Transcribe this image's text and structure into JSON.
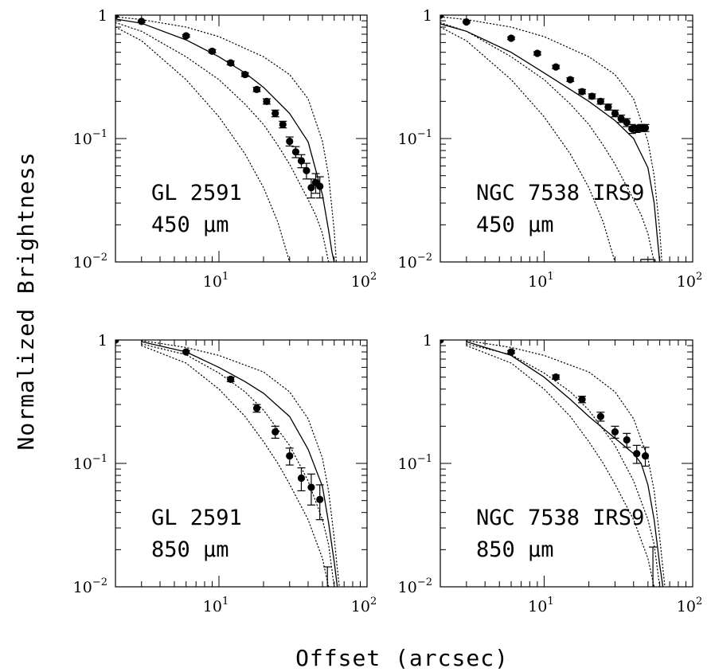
{
  "figure": {
    "xlabel": "Offset (arcsec)",
    "ylabel": "Normalized Brightness"
  },
  "chart_data": [
    {
      "type": "scatter",
      "source": "GL 2591",
      "wavelength": "450 μm",
      "xscale": "log",
      "yscale": "log",
      "xlim": [
        2,
        100
      ],
      "ylim": [
        0.01,
        1
      ],
      "x_ticks": [
        {
          "base": "10",
          "exp": "1"
        },
        {
          "base": "10",
          "exp": "2"
        }
      ],
      "y_ticks": [
        {
          "base": "1",
          "exp": ""
        },
        {
          "base": "10",
          "exp": "−1"
        },
        {
          "base": "10",
          "exp": "−2"
        }
      ],
      "series": [
        {
          "style": "points",
          "x": [
            2,
            3,
            6,
            9,
            12,
            15,
            18,
            21,
            24,
            27,
            30,
            33,
            36,
            39,
            42,
            45,
            48
          ],
          "y": [
            1.0,
            0.89,
            0.68,
            0.51,
            0.41,
            0.33,
            0.25,
            0.2,
            0.16,
            0.13,
            0.095,
            0.078,
            0.066,
            0.055,
            0.04,
            0.044,
            0.041
          ],
          "yerr": [
            0,
            0.015,
            0.015,
            0.015,
            0.015,
            0.012,
            0.01,
            0.01,
            0.01,
            0.008,
            0.008,
            0.008,
            0.008,
            0.008,
            0.007,
            0.008,
            0.008
          ]
        },
        {
          "style": "solid",
          "x": [
            2,
            3,
            6,
            10,
            15,
            20,
            30,
            40,
            50,
            55,
            58,
            60
          ],
          "y": [
            0.93,
            0.86,
            0.63,
            0.46,
            0.34,
            0.26,
            0.16,
            0.094,
            0.035,
            0.018,
            0.012,
            0.01
          ]
        },
        {
          "style": "dotted",
          "x": [
            2,
            3,
            6,
            10,
            20,
            30,
            40,
            50,
            55,
            60,
            62
          ],
          "y": [
            0.97,
            0.92,
            0.8,
            0.67,
            0.46,
            0.33,
            0.21,
            0.095,
            0.05,
            0.018,
            0.01
          ]
        },
        {
          "style": "dotted",
          "x": [
            2,
            3,
            6,
            10,
            15,
            20,
            25,
            30,
            40,
            45,
            50,
            55
          ],
          "y": [
            0.87,
            0.74,
            0.46,
            0.3,
            0.19,
            0.13,
            0.088,
            0.062,
            0.032,
            0.024,
            0.017,
            0.01
          ]
        },
        {
          "style": "dotted",
          "x": [
            2,
            3,
            6,
            10,
            15,
            20,
            25,
            30
          ],
          "y": [
            0.8,
            0.62,
            0.3,
            0.15,
            0.075,
            0.04,
            0.021,
            0.01
          ]
        }
      ]
    },
    {
      "type": "scatter",
      "source": "NGC 7538 IRS9",
      "wavelength": "450 μm",
      "xscale": "log",
      "yscale": "log",
      "xlim": [
        2,
        100
      ],
      "ylim": [
        0.01,
        1
      ],
      "x_ticks": [
        {
          "base": "10",
          "exp": "1"
        },
        {
          "base": "10",
          "exp": "2"
        }
      ],
      "y_ticks": [
        {
          "base": "1",
          "exp": ""
        },
        {
          "base": "10",
          "exp": "−1"
        },
        {
          "base": "10",
          "exp": "−2"
        }
      ],
      "series": [
        {
          "style": "points",
          "x": [
            2,
            3,
            6,
            9,
            12,
            15,
            18,
            21,
            24,
            27,
            30,
            33,
            36,
            39,
            42,
            45,
            48
          ],
          "y": [
            1.0,
            0.88,
            0.65,
            0.49,
            0.38,
            0.3,
            0.24,
            0.22,
            0.2,
            0.18,
            0.16,
            0.145,
            0.135,
            0.12,
            0.12,
            0.122,
            0.122
          ],
          "yerr": [
            0,
            0.015,
            0.015,
            0.015,
            0.012,
            0.01,
            0.01,
            0.01,
            0.01,
            0.01,
            0.01,
            0.01,
            0.01,
            0.01,
            0.008,
            0.008,
            0.008
          ]
        },
        {
          "style": "solid",
          "x": [
            2,
            3,
            6,
            10,
            20,
            30,
            40,
            50,
            55,
            58,
            60
          ],
          "y": [
            0.85,
            0.74,
            0.5,
            0.34,
            0.2,
            0.14,
            0.1,
            0.058,
            0.03,
            0.015,
            0.01
          ]
        },
        {
          "style": "dotted",
          "x": [
            2,
            3,
            6,
            10,
            20,
            30,
            40,
            50,
            55,
            60,
            62
          ],
          "y": [
            0.97,
            0.92,
            0.8,
            0.67,
            0.46,
            0.33,
            0.21,
            0.095,
            0.05,
            0.018,
            0.01
          ]
        },
        {
          "style": "dotted",
          "x": [
            2,
            3,
            6,
            10,
            15,
            20,
            25,
            30,
            40,
            45,
            50,
            55
          ],
          "y": [
            0.87,
            0.74,
            0.46,
            0.3,
            0.19,
            0.13,
            0.088,
            0.062,
            0.032,
            0.024,
            0.017,
            0.01
          ]
        },
        {
          "style": "dotted",
          "x": [
            2,
            3,
            6,
            10,
            15,
            20,
            25,
            30
          ],
          "y": [
            0.8,
            0.62,
            0.3,
            0.15,
            0.075,
            0.04,
            0.021,
            0.01
          ]
        }
      ],
      "upper_limits": [
        {
          "x": 50,
          "y": 0.0105,
          "bracket": true
        }
      ]
    },
    {
      "type": "scatter",
      "source": "GL 2591",
      "wavelength": "850 μm",
      "xscale": "log",
      "yscale": "log",
      "xlim": [
        2,
        100
      ],
      "ylim": [
        0.01,
        1
      ],
      "x_ticks": [
        {
          "base": "10",
          "exp": "1"
        },
        {
          "base": "10",
          "exp": "2"
        }
      ],
      "y_ticks": [
        {
          "base": "1",
          "exp": ""
        },
        {
          "base": "10",
          "exp": "−1"
        },
        {
          "base": "10",
          "exp": "−2"
        }
      ],
      "series": [
        {
          "style": "points",
          "x": [
            2,
            6,
            12,
            18,
            24,
            30,
            36,
            42,
            48
          ],
          "y": [
            1.0,
            0.8,
            0.48,
            0.28,
            0.18,
            0.115,
            0.076,
            0.064,
            0.051
          ],
          "yerr": [
            0,
            0.02,
            0.02,
            0.02,
            0.02,
            0.018,
            0.016,
            0.018,
            0.016
          ]
        },
        {
          "style": "solid",
          "x": [
            3,
            6,
            10,
            15,
            20,
            30,
            40,
            50,
            55,
            60,
            63
          ],
          "y": [
            0.97,
            0.8,
            0.6,
            0.46,
            0.37,
            0.24,
            0.13,
            0.065,
            0.033,
            0.016,
            0.01
          ]
        },
        {
          "style": "dotted",
          "x": [
            3,
            6,
            10,
            20,
            30,
            40,
            50,
            55,
            60,
            63,
            65
          ],
          "y": [
            0.99,
            0.87,
            0.75,
            0.55,
            0.38,
            0.23,
            0.11,
            0.06,
            0.025,
            0.014,
            0.01
          ]
        },
        {
          "style": "dotted",
          "x": [
            3,
            6,
            10,
            15,
            20,
            30,
            40,
            50,
            55,
            60
          ],
          "y": [
            0.93,
            0.76,
            0.54,
            0.38,
            0.27,
            0.14,
            0.072,
            0.035,
            0.022,
            0.01
          ]
        },
        {
          "style": "dotted",
          "x": [
            3,
            6,
            10,
            15,
            20,
            25,
            30,
            40,
            50,
            55
          ],
          "y": [
            0.9,
            0.65,
            0.4,
            0.24,
            0.15,
            0.1,
            0.068,
            0.035,
            0.017,
            0.01
          ]
        }
      ],
      "upper_limits": [
        {
          "x": 54,
          "y": 0.0145,
          "bracket": false
        }
      ]
    },
    {
      "type": "scatter",
      "source": "NGC 7538 IRS9",
      "wavelength": "850 μm",
      "xscale": "log",
      "yscale": "log",
      "xlim": [
        2,
        100
      ],
      "ylim": [
        0.01,
        1
      ],
      "x_ticks": [
        {
          "base": "10",
          "exp": "1"
        },
        {
          "base": "10",
          "exp": "2"
        }
      ],
      "y_ticks": [
        {
          "base": "1",
          "exp": ""
        },
        {
          "base": "10",
          "exp": "−1"
        },
        {
          "base": "10",
          "exp": "−2"
        }
      ],
      "series": [
        {
          "style": "points",
          "x": [
            2,
            6,
            12,
            18,
            24,
            30,
            36,
            42,
            48
          ],
          "y": [
            1.0,
            0.8,
            0.5,
            0.33,
            0.24,
            0.18,
            0.155,
            0.12,
            0.115
          ],
          "yerr": [
            0,
            0.02,
            0.02,
            0.02,
            0.02,
            0.02,
            0.02,
            0.02,
            0.02
          ]
        },
        {
          "style": "solid",
          "x": [
            3,
            6,
            10,
            15,
            20,
            30,
            40,
            45,
            50,
            55,
            60,
            63
          ],
          "y": [
            0.97,
            0.75,
            0.5,
            0.33,
            0.24,
            0.16,
            0.12,
            0.1,
            0.067,
            0.035,
            0.015,
            0.01
          ]
        },
        {
          "style": "dotted",
          "x": [
            3,
            6,
            10,
            20,
            30,
            40,
            50,
            55,
            60,
            63,
            65
          ],
          "y": [
            0.99,
            0.87,
            0.75,
            0.55,
            0.38,
            0.23,
            0.11,
            0.06,
            0.025,
            0.014,
            0.01
          ]
        },
        {
          "style": "dotted",
          "x": [
            3,
            6,
            10,
            15,
            20,
            30,
            40,
            50,
            55,
            60
          ],
          "y": [
            0.93,
            0.76,
            0.54,
            0.38,
            0.27,
            0.14,
            0.072,
            0.035,
            0.022,
            0.01
          ]
        },
        {
          "style": "dotted",
          "x": [
            3,
            6,
            10,
            15,
            20,
            25,
            30,
            40,
            50,
            55
          ],
          "y": [
            0.9,
            0.65,
            0.4,
            0.24,
            0.15,
            0.1,
            0.068,
            0.035,
            0.017,
            0.01
          ]
        }
      ],
      "upper_limits": [
        {
          "x": 54,
          "y": 0.021,
          "bracket": false
        }
      ]
    }
  ]
}
